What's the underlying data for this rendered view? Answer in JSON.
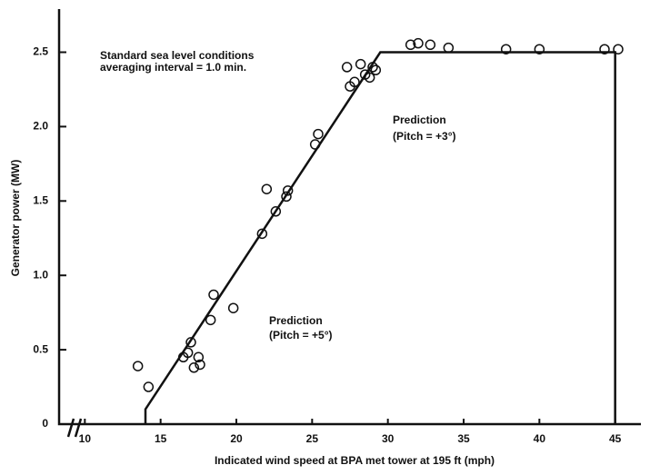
{
  "chart_data": {
    "type": "line_scatter",
    "x_label": "Indicated wind speed at BPA met tower at 195 ft (mph)",
    "y_label": "Generator power (MW)",
    "annotations": [
      "Standard sea level conditions",
      "averaging interval = 1.0 min.",
      "Prediction",
      "(Pitch = +3°)",
      "Prediction",
      "(Pitch = +5°)"
    ],
    "xlim": [
      8.3,
      46.7
    ],
    "ylim": [
      0,
      2.79
    ],
    "xticks": [
      10,
      15,
      20,
      25,
      30,
      35,
      40,
      45
    ],
    "yticks": [
      0,
      0.5,
      {
        "value": 1.0,
        "label": "1.0"
      },
      1.5,
      {
        "value": 2.0,
        "label": "2.0"
      },
      2.5
    ],
    "color": "#111111",
    "line": {
      "x": [
        14,
        14,
        29.5,
        45,
        45
      ],
      "values": [
        0,
        0.1,
        2.5,
        2.5,
        0
      ]
    },
    "scatter": {
      "x": [
        13.5,
        14.2,
        16.5,
        16.8,
        17,
        17.2,
        17.5,
        17.6,
        18.3,
        18.5,
        19.8,
        21.7,
        22,
        22.6,
        23.3,
        23.4,
        25.2,
        25.4,
        27.3,
        27.5,
        27.8,
        28.2,
        28.5,
        28.8,
        29,
        29.2,
        31.5,
        32,
        32.8,
        34,
        37.8,
        40,
        44.3,
        45.2
      ],
      "values": [
        0.39,
        0.25,
        0.45,
        0.48,
        0.55,
        0.38,
        0.45,
        0.4,
        0.7,
        0.87,
        0.78,
        1.28,
        1.58,
        1.43,
        1.53,
        1.57,
        1.88,
        1.95,
        2.4,
        2.27,
        2.3,
        2.42,
        2.35,
        2.33,
        2.4,
        2.38,
        2.55,
        2.56,
        2.55,
        2.53,
        2.52,
        2.52,
        2.52,
        2.52
      ]
    }
  }
}
